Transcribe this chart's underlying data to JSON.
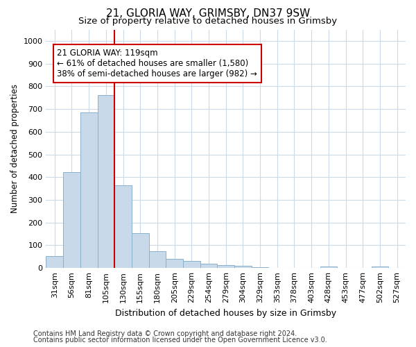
{
  "title1": "21, GLORIA WAY, GRIMSBY, DN37 9SW",
  "title2": "Size of property relative to detached houses in Grimsby",
  "xlabel": "Distribution of detached houses by size in Grimsby",
  "ylabel": "Number of detached properties",
  "categories": [
    "31sqm",
    "56sqm",
    "81sqm",
    "105sqm",
    "130sqm",
    "155sqm",
    "180sqm",
    "205sqm",
    "229sqm",
    "254sqm",
    "279sqm",
    "304sqm",
    "329sqm",
    "353sqm",
    "378sqm",
    "403sqm",
    "428sqm",
    "453sqm",
    "477sqm",
    "502sqm",
    "527sqm"
  ],
  "values": [
    52,
    422,
    685,
    760,
    363,
    152,
    75,
    40,
    32,
    18,
    12,
    9,
    5,
    0,
    0,
    0,
    7,
    0,
    0,
    8,
    0
  ],
  "bar_color": "#c8d9ea",
  "bar_edge_color": "#8ab0cc",
  "vline_x": 3.5,
  "vline_color": "#cc0000",
  "ylim": [
    0,
    1050
  ],
  "yticks": [
    0,
    100,
    200,
    300,
    400,
    500,
    600,
    700,
    800,
    900,
    1000
  ],
  "annotation_text": "21 GLORIA WAY: 119sqm\n← 61% of detached houses are smaller (1,580)\n38% of semi-detached houses are larger (982) →",
  "annotation_box_color": "#ffffff",
  "annotation_box_edge": "#cc0000",
  "footer1": "Contains HM Land Registry data © Crown copyright and database right 2024.",
  "footer2": "Contains public sector information licensed under the Open Government Licence v3.0.",
  "background_color": "#ffffff",
  "grid_color": "#ccd9e8",
  "title1_fontsize": 11,
  "title2_fontsize": 9.5,
  "xlabel_fontsize": 9,
  "ylabel_fontsize": 8.5,
  "tick_fontsize": 8,
  "annotation_fontsize": 8.5,
  "footer_fontsize": 7
}
